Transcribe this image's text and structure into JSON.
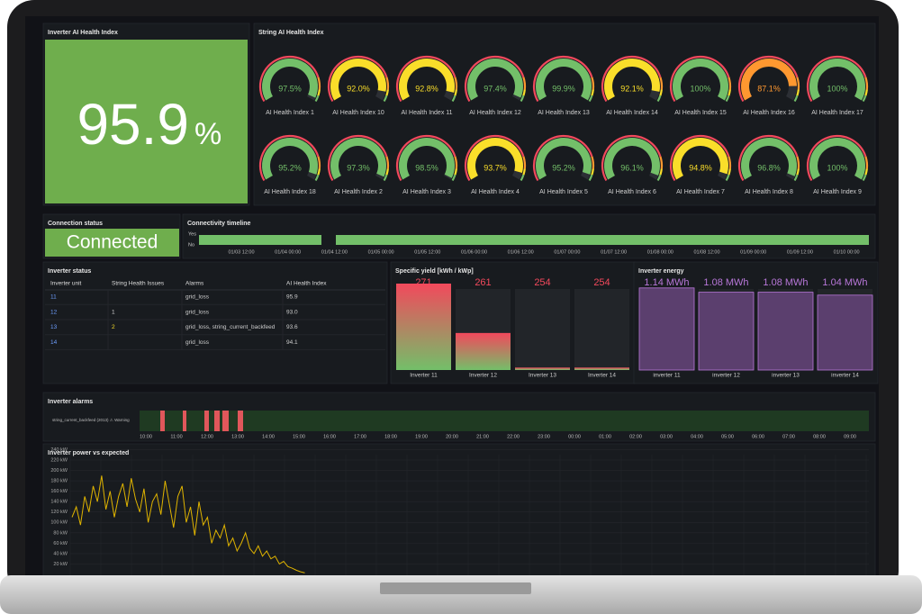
{
  "panels": {
    "health": {
      "title": "Inverter AI Health Index",
      "value": 95.9,
      "unit": "%"
    },
    "strings": {
      "title": "String AI Health Index",
      "range": [
        0,
        100
      ],
      "thresholds": [
        {
          "value": 0,
          "color": "#f2495c"
        },
        {
          "value": 80,
          "color": "#ff9830"
        },
        {
          "value": 90,
          "color": "#fade2a"
        },
        {
          "value": 95,
          "color": "#73bf69"
        }
      ],
      "gauges": [
        {
          "name": "AI Health Index 1",
          "value": 97.5,
          "value_label": "97.5%"
        },
        {
          "name": "AI Health Index 10",
          "value": 92.0,
          "value_label": "92.0%"
        },
        {
          "name": "AI Health Index 11",
          "value": 92.8,
          "value_label": "92.8%"
        },
        {
          "name": "AI Health Index 12",
          "value": 97.4,
          "value_label": "97.4%"
        },
        {
          "name": "AI Health Index 13",
          "value": 99.9,
          "value_label": "99.9%"
        },
        {
          "name": "AI Health Index 14",
          "value": 92.1,
          "value_label": "92.1%"
        },
        {
          "name": "AI Health Index 15",
          "value": 100,
          "value_label": "100%"
        },
        {
          "name": "AI Health Index 16",
          "value": 87.1,
          "value_label": "87.1%"
        },
        {
          "name": "AI Health Index 17",
          "value": 100,
          "value_label": "100%"
        },
        {
          "name": "AI Health Index 18",
          "value": 95.2,
          "value_label": "95.2%"
        },
        {
          "name": "AI Health Index 2",
          "value": 97.3,
          "value_label": "97.3%"
        },
        {
          "name": "AI Health Index 3",
          "value": 98.5,
          "value_label": "98.5%"
        },
        {
          "name": "AI Health Index 4",
          "value": 93.7,
          "value_label": "93.7%"
        },
        {
          "name": "AI Health Index 5",
          "value": 95.2,
          "value_label": "95.2%"
        },
        {
          "name": "AI Health Index 6",
          "value": 96.1,
          "value_label": "96.1%"
        },
        {
          "name": "AI Health Index 7",
          "value": 94.8,
          "value_label": "94.8%"
        },
        {
          "name": "AI Health Index 8",
          "value": 96.8,
          "value_label": "96.8%"
        },
        {
          "name": "AI Health Index 9",
          "value": 100,
          "value_label": "100%"
        }
      ]
    },
    "connection": {
      "title": "Connection status",
      "value": "Connected"
    },
    "timeline": {
      "title": "Connectivity timeline",
      "states": [
        "Yes",
        "No"
      ],
      "ticks": [
        "01/03 12:00",
        "01/04 00:00",
        "01/04 12:00",
        "01/05 00:00",
        "01/05 12:00",
        "01/06 00:00",
        "01/06 12:00",
        "01/07 00:00",
        "01/07 12:00",
        "01/08 00:00",
        "01/08 12:00",
        "01/09 00:00",
        "01/09 12:00",
        "01/10 00:00"
      ]
    },
    "status": {
      "title": "Inverter status",
      "columns": [
        "Inverter unit",
        "String Health Issues",
        "Alarms",
        "AI Health Index"
      ],
      "rows": [
        {
          "unit": "11",
          "alarms": "grid_loss",
          "health": "95.9"
        },
        {
          "unit": "12",
          "issues": "1",
          "alarms": "grid_loss",
          "health": "93.0"
        },
        {
          "unit": "13",
          "issues": "2",
          "alarms": "grid_loss, string_current_backfeed",
          "health": "93.6"
        },
        {
          "unit": "14",
          "alarms": "grid_loss",
          "health": "94.1"
        }
      ]
    },
    "yield": {
      "type": "bar",
      "title": "Specific yield [kWh / kWp]",
      "categories": [
        "Inverter 11",
        "Inverter 12",
        "Inverter 13",
        "Inverter 14"
      ],
      "values": [
        271,
        261,
        254,
        254
      ],
      "ylim": [
        253.5,
        271
      ],
      "gradient": [
        "#f2495c",
        "#73bf69"
      ],
      "label_color": "#f2495c"
    },
    "energy": {
      "type": "bar",
      "title": "Inverter energy",
      "categories": [
        "inverter 11",
        "inverter 12",
        "inverter 13",
        "inverter 14"
      ],
      "values": [
        1.14,
        1.08,
        1.08,
        1.04
      ],
      "value_labels": [
        "1.14 MWh",
        "1.08 MWh",
        "1.08 MWh",
        "1.04 MWh"
      ],
      "ylim": [
        0,
        1.2
      ],
      "color": "#b877d9"
    },
    "alarms": {
      "title": "Inverter alarms",
      "legend": "string_current_backfeed (2013) ⚠ Warning",
      "ticks": [
        "10:00",
        "11:00",
        "12:00",
        "13:00",
        "14:00",
        "15:00",
        "16:00",
        "17:00",
        "18:00",
        "19:00",
        "20:00",
        "21:00",
        "22:00",
        "23:00",
        "00:00",
        "01:00",
        "02:00",
        "03:00",
        "04:00",
        "05:00",
        "06:00",
        "07:00",
        "08:00",
        "09:00"
      ]
    },
    "power": {
      "type": "line",
      "title": "Inverter power vs expected",
      "color": "#e0b400",
      "grid": true,
      "ylim": [
        0,
        240
      ],
      "yticks": [
        {
          "value": 20,
          "label": "20 kW"
        },
        {
          "value": 40,
          "label": "40 kW"
        },
        {
          "value": 60,
          "label": "60 kW"
        },
        {
          "value": 80,
          "label": "80 kW"
        },
        {
          "value": 100,
          "label": "100 kW"
        },
        {
          "value": 120,
          "label": "120 kW"
        },
        {
          "value": 140,
          "label": "140 kW"
        },
        {
          "value": 160,
          "label": "160 kW"
        },
        {
          "value": 180,
          "label": "180 kW"
        },
        {
          "value": 200,
          "label": "200 kW"
        },
        {
          "value": 220,
          "label": "220 kW"
        },
        {
          "value": 240,
          "label": "240 kW"
        }
      ],
      "values": [
        110,
        130,
        95,
        150,
        120,
        170,
        140,
        190,
        125,
        160,
        110,
        150,
        175,
        130,
        185,
        145,
        120,
        165,
        100,
        140,
        155,
        115,
        180,
        135,
        90,
        150,
        170,
        100,
        130,
        75,
        140,
        95,
        110,
        60,
        85,
        70,
        95,
        55,
        70,
        45,
        60,
        80,
        50,
        40,
        55,
        35,
        45,
        30,
        35,
        20,
        25,
        15,
        12,
        8,
        5,
        3
      ]
    }
  }
}
